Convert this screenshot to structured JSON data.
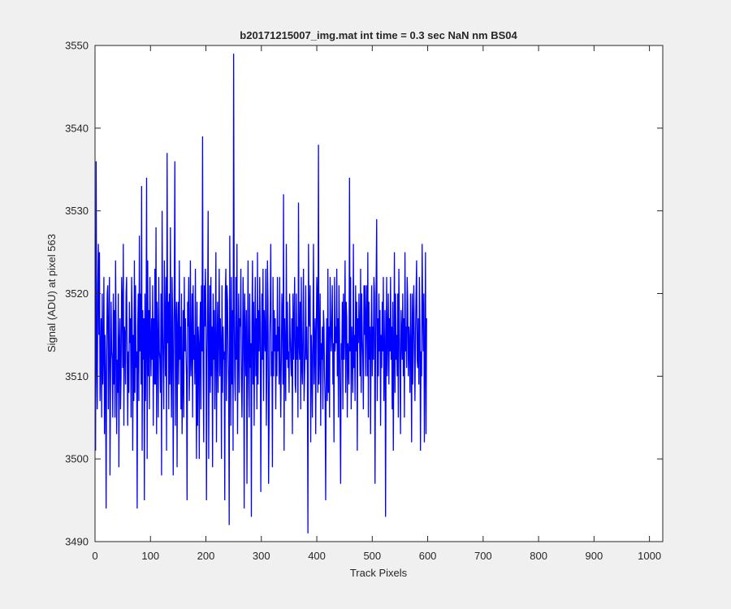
{
  "chart_data": {
    "type": "line",
    "title": "b20171215007_img.mat int time = 0.3 sec  NaN nm BS04",
    "xlabel": "Track Pixels",
    "ylabel": "Signal (ADU) at pixel 563",
    "xlim": [
      0,
      1024
    ],
    "ylim": [
      3490,
      3550
    ],
    "xticks": [
      0,
      100,
      200,
      300,
      400,
      500,
      600,
      700,
      800,
      900,
      1000
    ],
    "xtick_labels": [
      "0",
      "100",
      "200",
      "300",
      "400",
      "500",
      "600",
      "700",
      "800",
      "900",
      "1000"
    ],
    "yticks": [
      3490,
      3500,
      3510,
      3520,
      3530,
      3540,
      3550
    ],
    "ytick_labels": [
      "3490",
      "3500",
      "3510",
      "3520",
      "3530",
      "3540",
      "3550"
    ],
    "grid": false,
    "series": [
      {
        "color": "#0000ff",
        "x_start": 1,
        "x_step": 1,
        "values": [
          3501,
          3536,
          3512,
          3506,
          3521,
          3526,
          3515,
          3525,
          3507,
          3512,
          3517,
          3505,
          3520,
          3509,
          3513,
          3522,
          3503,
          3515,
          3510,
          3494,
          3513,
          3520,
          3521,
          3506,
          3516,
          3522,
          3498,
          3509,
          3519,
          3513,
          3512,
          3505,
          3520,
          3509,
          3518,
          3505,
          3524,
          3516,
          3503,
          3512,
          3508,
          3520,
          3499,
          3514,
          3517,
          3506,
          3510,
          3522,
          3519,
          3511,
          3526,
          3504,
          3516,
          3515,
          3509,
          3520,
          3522,
          3512,
          3504,
          3513,
          3508,
          3519,
          3514,
          3517,
          3505,
          3522,
          3517,
          3501,
          3515,
          3507,
          3524,
          3508,
          3521,
          3511,
          3513,
          3494,
          3516,
          3520,
          3507,
          3527,
          3513,
          3520,
          3509,
          3533,
          3501,
          3518,
          3512,
          3517,
          3495,
          3520,
          3507,
          3514,
          3534,
          3500,
          3524,
          3510,
          3518,
          3506,
          3522,
          3514,
          3510,
          3517,
          3512,
          3521,
          3504,
          3517,
          3509,
          3523,
          3509,
          3528,
          3503,
          3519,
          3514,
          3505,
          3522,
          3513,
          3512,
          3508,
          3520,
          3498,
          3530,
          3516,
          3511,
          3506,
          3524,
          3517,
          3510,
          3522,
          3501,
          3537,
          3514,
          3519,
          3506,
          3520,
          3509,
          3528,
          3511,
          3505,
          3522,
          3517,
          3498,
          3512,
          3521,
          3536,
          3504,
          3516,
          3519,
          3499,
          3516,
          3519,
          3509,
          3524,
          3512,
          3516,
          3506,
          3520,
          3503,
          3509,
          3518,
          3505,
          3522,
          3513,
          3517,
          3513,
          3510,
          3495,
          3519,
          3516,
          3522,
          3507,
          3512,
          3524,
          3510,
          3513,
          3520,
          3505,
          3521,
          3512,
          3515,
          3509,
          3523,
          3511,
          3500,
          3519,
          3504,
          3516,
          3514,
          3500,
          3515,
          3519,
          3506,
          3521,
          3513,
          3539,
          3511,
          3502,
          3521,
          3516,
          3523,
          3518,
          3495,
          3512,
          3517,
          3530,
          3500,
          3513,
          3521,
          3508,
          3522,
          3510,
          3516,
          3499,
          3520,
          3512,
          3518,
          3506,
          3514,
          3525,
          3502,
          3513,
          3519,
          3508,
          3515,
          3523,
          3510,
          3517,
          3514,
          3500,
          3521,
          3508,
          3516,
          3512,
          3513,
          3495,
          3520,
          3523,
          3507,
          3521,
          3519,
          3513,
          3509,
          3492,
          3527,
          3515,
          3504,
          3522,
          3509,
          3518,
          3501,
          3549,
          3518,
          3510,
          3507,
          3522,
          3512,
          3526,
          3503,
          3513,
          3520,
          3508,
          3517,
          3516,
          3523,
          3510,
          3505,
          3512,
          3522,
          3517,
          3494,
          3520,
          3515,
          3510,
          3518,
          3497,
          3513,
          3524,
          3510,
          3505,
          3520,
          3511,
          3514,
          3493,
          3517,
          3524,
          3509,
          3519,
          3504,
          3515,
          3522,
          3510,
          3517,
          3506,
          3525,
          3509,
          3518,
          3513,
          3522,
          3516,
          3496,
          3511,
          3520,
          3512,
          3523,
          3507,
          3518,
          3515,
          3513,
          3523,
          3504,
          3511,
          3524,
          3519,
          3497,
          3505,
          3515,
          3518,
          3526,
          3510,
          3513,
          3499,
          3522,
          3510,
          3518,
          3513,
          3517,
          3506,
          3515,
          3510,
          3522,
          3513,
          3516,
          3509,
          3522,
          3511,
          3505,
          3512,
          3520,
          3517,
          3509,
          3532,
          3501,
          3517,
          3513,
          3507,
          3526,
          3512,
          3519,
          3511,
          3513,
          3508,
          3520,
          3515,
          3512,
          3510,
          3517,
          3503,
          3520,
          3512,
          3516,
          3522,
          3509,
          3508,
          3520,
          3512,
          3516,
          3505,
          3531,
          3514,
          3512,
          3519,
          3506,
          3522,
          3511,
          3509,
          3516,
          3523,
          3507,
          3510,
          3513,
          3521,
          3512,
          3516,
          3510,
          3491,
          3526,
          3517,
          3516,
          3521,
          3502,
          3515,
          3512,
          3505,
          3515,
          3526,
          3509,
          3514,
          3517,
          3503,
          3515,
          3522,
          3519,
          3508,
          3538,
          3509,
          3513,
          3520,
          3504,
          3514,
          3512,
          3516,
          3506,
          3518,
          3516,
          3510,
          3507,
          3495,
          3512,
          3517,
          3507,
          3523,
          3508,
          3516,
          3505,
          3522,
          3517,
          3513,
          3516,
          3521,
          3509,
          3514,
          3502,
          3522,
          3513,
          3516,
          3514,
          3523,
          3510,
          3517,
          3505,
          3521,
          3515,
          3506,
          3497,
          3514,
          3512,
          3519,
          3506,
          3520,
          3512,
          3516,
          3524,
          3508,
          3519,
          3517,
          3505,
          3514,
          3512,
          3509,
          3534,
          3513,
          3522,
          3506,
          3516,
          3513,
          3508,
          3526,
          3511,
          3515,
          3507,
          3521,
          3513,
          3519,
          3501,
          3517,
          3514,
          3520,
          3515,
          3510,
          3523,
          3508,
          3520,
          3515,
          3512,
          3506,
          3521,
          3515,
          3521,
          3510,
          3517,
          3521,
          3510,
          3525,
          3505,
          3519,
          3512,
          3516,
          3503,
          3515,
          3521,
          3510,
          3516,
          3512,
          3522,
          3520,
          3497,
          3513,
          3521,
          3529,
          3507,
          3517,
          3510,
          3520,
          3513,
          3518,
          3504,
          3515,
          3511,
          3519,
          3513,
          3522,
          3507,
          3512,
          3518,
          3493,
          3513,
          3522,
          3510,
          3515,
          3520,
          3509,
          3517,
          3513,
          3522,
          3512,
          3516,
          3506,
          3519,
          3501,
          3513,
          3525,
          3508,
          3520,
          3512,
          3515,
          3510,
          3520,
          3505,
          3523,
          3516,
          3511,
          3503,
          3518,
          3515,
          3512,
          3520,
          3510,
          3517,
          3505,
          3525,
          3513,
          3516,
          3511,
          3522,
          3519,
          3510,
          3516,
          3514,
          3508,
          3520,
          3513,
          3502,
          3520,
          3509,
          3517,
          3521,
          3513,
          3507,
          3515,
          3520,
          3524,
          3512,
          3511,
          3517,
          3509,
          3522,
          3516,
          3501,
          3513,
          3510,
          3526,
          3518,
          3513,
          3520,
          3502,
          3512,
          3525,
          3503,
          3517
        ]
      }
    ]
  }
}
